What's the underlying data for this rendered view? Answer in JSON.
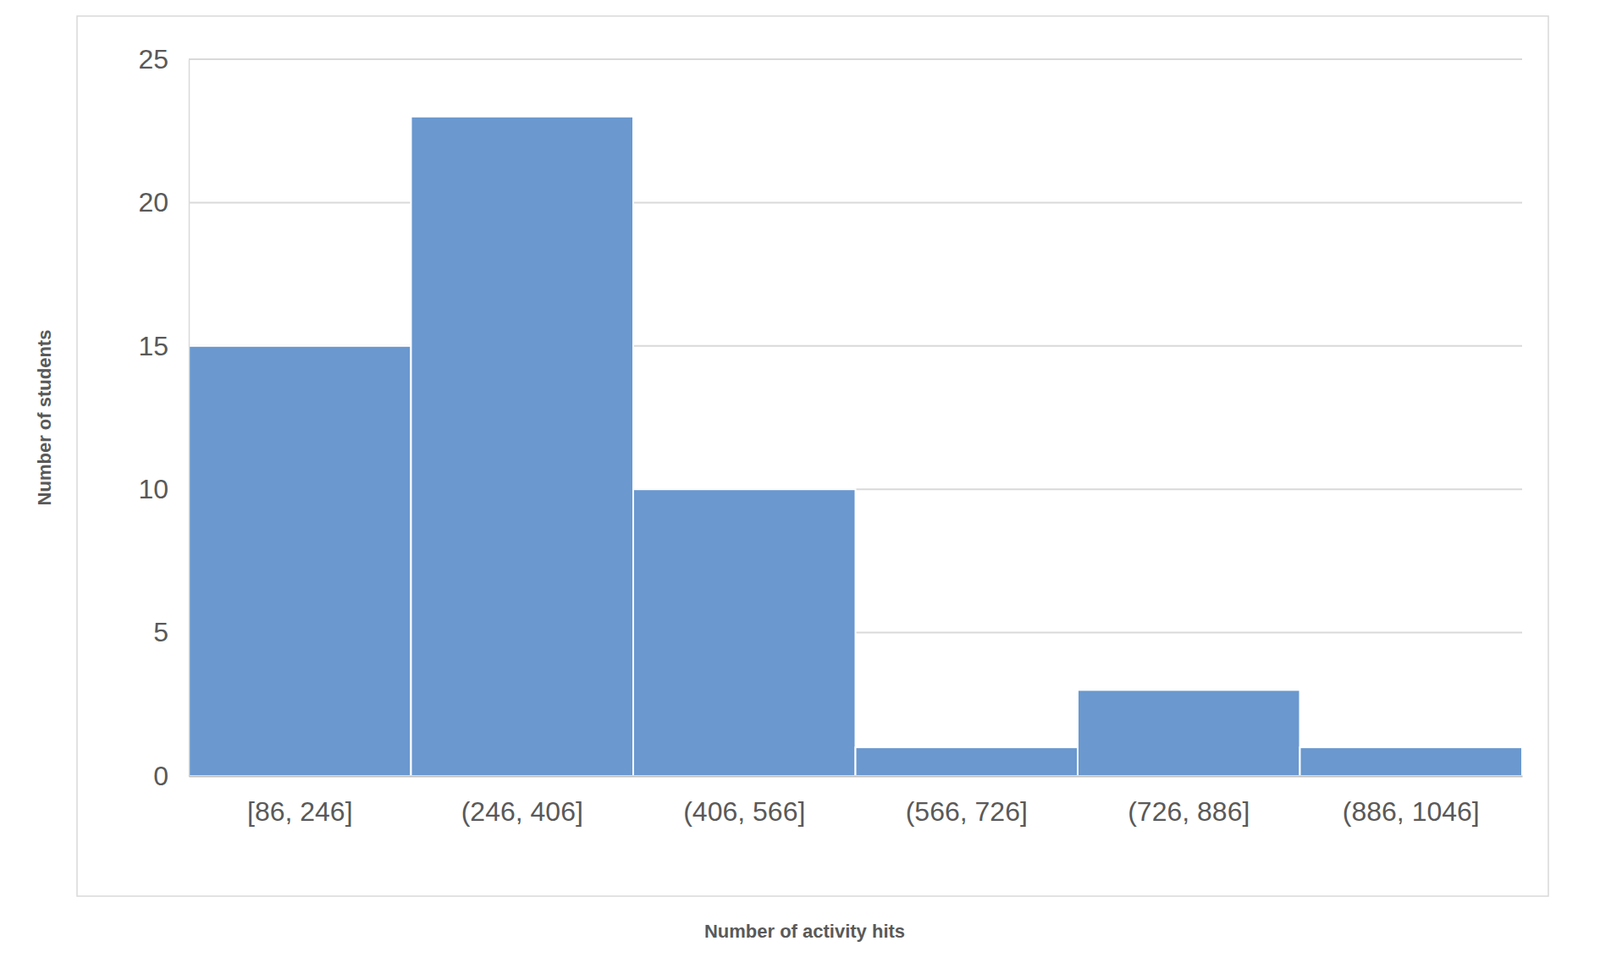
{
  "chart_data": {
    "type": "bar",
    "x_label": "Number of activity hits",
    "y_label": "Number of students",
    "categories": [
      "[86, 246]",
      "(246, 406]",
      "(406, 566]",
      "(566, 726]",
      "(726, 886]",
      "(886, 1046]"
    ],
    "values": [
      15,
      23,
      10,
      1,
      3,
      1
    ],
    "color": "#6a98cf",
    "ylim": [
      0,
      25
    ],
    "yticks": [
      0,
      5,
      10,
      15,
      20,
      25
    ],
    "grid": true
  }
}
